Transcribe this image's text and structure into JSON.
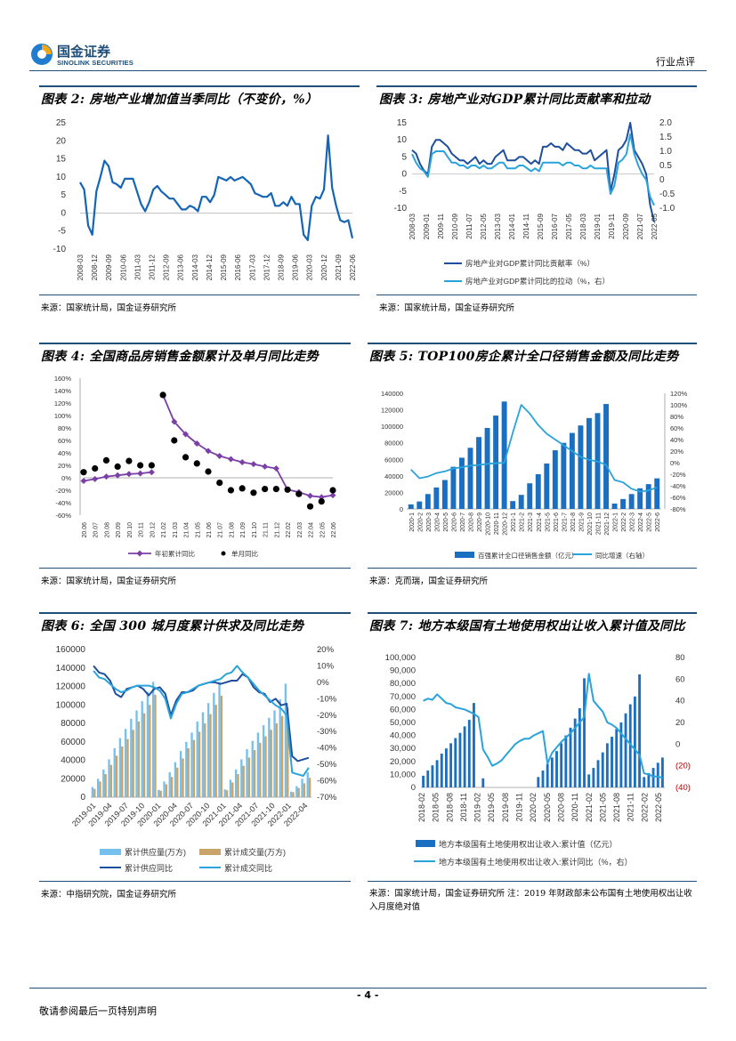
{
  "header": {
    "logo_cn": "国金证券",
    "logo_en": "SINOLINK SECURITIES",
    "category": "行业点评"
  },
  "fig2": {
    "title": "图表 2: 房地产业增加值当季同比（不变价，%）",
    "source": "来源：国家统计局，国金证券研究所",
    "chart_data": {
      "type": "line",
      "yticks": [
        "25",
        "20",
        "15",
        "10",
        "5",
        "0",
        "-5",
        "-10"
      ],
      "ylim": [
        -10,
        25
      ],
      "xlabels": [
        "2008-03",
        "2008-12",
        "2009-09",
        "2010-06",
        "2011-03",
        "2011-12",
        "2012-09",
        "2013-06",
        "2014-03",
        "2014-12",
        "2015-09",
        "2016-06",
        "2017-03",
        "2017-12",
        "2018-09",
        "2019-06",
        "2020-03",
        "2020-12",
        "2021-09",
        "2022-06"
      ],
      "series": [
        {
          "name": "房地产业增加值当季同比",
          "color": "#1565b6",
          "values": [
            8.5,
            6.5,
            -3.5,
            -6,
            6,
            10,
            14.5,
            13,
            8.5,
            8,
            7,
            9.5,
            9.5,
            9.5,
            6,
            2.5,
            0.5,
            3,
            6.5,
            7.5,
            6,
            5,
            4,
            4,
            2.5,
            1,
            1,
            2,
            1.5,
            0.5,
            4.5,
            4.5,
            3,
            5,
            10,
            9.5,
            9,
            10,
            9,
            9.5,
            10,
            9,
            8,
            5.5,
            5,
            4.5,
            4.5,
            5.5,
            2,
            2,
            3,
            2,
            4.5,
            2.5,
            2.5,
            -6,
            -7.5,
            2,
            4.5,
            4,
            6.5,
            21.5,
            7,
            2,
            -2,
            -2.5,
            -2,
            -7
          ]
        }
      ]
    }
  },
  "fig3": {
    "title": "图表 3: 房地产业对GDP累计同比贡献率和拉动",
    "source": "来源：国家统计局，国金证券研究所",
    "chart_data": {
      "type": "line",
      "yticks_left": [
        "15",
        "10",
        "5",
        "0",
        "-5",
        "-10"
      ],
      "yticks_right": [
        "2.0",
        "1.5",
        "1.0",
        "0.5",
        "0",
        "-0.5",
        "-1.0"
      ],
      "ylim_left": [
        -10,
        15
      ],
      "ylim_right": [
        -1.0,
        2.0
      ],
      "xlabels": [
        "2008-03",
        "2009-01",
        "2009-11",
        "2010-09",
        "2011-07",
        "2012-05",
        "2013-03",
        "2014-01",
        "2014-11",
        "2015-09",
        "2016-07",
        "2017-05",
        "2018-03",
        "2019-01",
        "2019-11",
        "2020-09",
        "2021-07",
        "2022-05"
      ],
      "legend": [
        "房地产业对GDP累计同比贡献率（%）",
        "房地产业对GDP累计同比的拉动（%，右）"
      ],
      "series": [
        {
          "name": "房地产业对GDP累计同比贡献率（%）",
          "axis": "left",
          "color": "#1f4e9e",
          "values": [
            7,
            6,
            3,
            1,
            0,
            8,
            10,
            10,
            9,
            8,
            6,
            5,
            4,
            4,
            3,
            4,
            5,
            3,
            4,
            3,
            3,
            5,
            6,
            7,
            4,
            4,
            4,
            5,
            5,
            4,
            3,
            4,
            3,
            8,
            8,
            9,
            8,
            8,
            7,
            9,
            8,
            7,
            7,
            6,
            6,
            7,
            4,
            5,
            6,
            7,
            -5,
            0,
            7,
            8,
            10,
            15,
            7,
            5,
            3,
            0,
            -9,
            -14
          ]
        },
        {
          "name": "房地产业对GDP累计同比的拉动（%，右）",
          "axis": "right",
          "color": "#29a3dc",
          "values": [
            0.9,
            0.6,
            0.4,
            0.3,
            0.1,
            0.9,
            1.0,
            1.0,
            1.0,
            0.8,
            0.6,
            0.6,
            0.5,
            0.5,
            0.4,
            0.5,
            0.5,
            0.4,
            0.5,
            0.4,
            0.4,
            0.5,
            0.6,
            0.6,
            0.4,
            0.4,
            0.4,
            0.5,
            0.5,
            0.4,
            0.3,
            0.4,
            0.3,
            0.6,
            0.6,
            0.6,
            0.6,
            0.6,
            0.5,
            0.6,
            0.6,
            0.5,
            0.5,
            0.4,
            0.4,
            0.5,
            0.4,
            0.4,
            0.4,
            0.4,
            -0.5,
            -0.2,
            0.6,
            0.7,
            0.9,
            1.6,
            0.9,
            0.5,
            0.2,
            0.0,
            -0.6,
            -0.9
          ]
        }
      ]
    }
  },
  "fig4": {
    "title": "图表 4: 全国商品房销售金额累计及单月同比走势",
    "source": "来源：国家统计局，国金证券研究所",
    "chart_data": {
      "type": "line",
      "yticks": [
        "160%",
        "140%",
        "120%",
        "100%",
        "80%",
        "60%",
        "40%",
        "20%",
        "0%",
        "-20%",
        "-40%",
        "-60%"
      ],
      "ylim": [
        -60,
        160
      ],
      "categories": [
        "20.06",
        "20.07",
        "20.08",
        "20.09",
        "20.10",
        "20.11",
        "20.12",
        "21.02",
        "21.03",
        "21.04",
        "21.05",
        "21.06",
        "21.07",
        "21.08",
        "21.09",
        "21.10",
        "21.11",
        "21.12",
        "22.02",
        "22.03",
        "22.04",
        "22.05",
        "22.06"
      ],
      "legend": [
        "年初累计同比",
        "单月同比"
      ],
      "series": [
        {
          "name": "年初累计同比",
          "color": "#7b3fa8",
          "values": [
            -5,
            -2,
            2,
            4,
            6,
            7,
            9,
            133,
            90,
            70,
            55,
            43,
            35,
            30,
            25,
            22,
            18,
            15,
            -19,
            -23,
            -29,
            -31,
            -28
          ]
        },
        {
          "name": "单月同比",
          "color": "#000000",
          "values": [
            9,
            15,
            28,
            18,
            27,
            20,
            20,
            133,
            60,
            33,
            23,
            10,
            -8,
            -20,
            -17,
            -24,
            -18,
            -18,
            -19,
            -26,
            -46,
            -38,
            -20
          ]
        }
      ]
    }
  },
  "fig5": {
    "title": "图表 5: TOP100房企累计全口径销售金额及同比走势",
    "source": "来源：克而瑞，国金证券研究所",
    "chart_data": {
      "type": "bar",
      "yticks_left": [
        "140000",
        "120000",
        "100000",
        "80000",
        "60000",
        "40000",
        "20000",
        "0"
      ],
      "yticks_right": [
        "120%",
        "100%",
        "80%",
        "60%",
        "40%",
        "20%",
        "0%",
        "-20%",
        "-40%",
        "-60%",
        "-80%"
      ],
      "ylim_left": [
        0,
        140000
      ],
      "ylim_right": [
        -80,
        120
      ],
      "categories": [
        "2020-1",
        "2020-2",
        "2020-3",
        "2020-4",
        "2020-5",
        "2020-6",
        "2020-7",
        "2020-8",
        "2020-9",
        "2020-10",
        "2020-11",
        "2020-12",
        "2021-1",
        "2021-2",
        "2021-3",
        "2021-4",
        "2021-5",
        "2021-6",
        "2021-7",
        "2021-8",
        "2021-9",
        "2021-10",
        "2021-11",
        "2021-12",
        "2022-1",
        "2022-2",
        "2022-3",
        "2022-4",
        "2022-5",
        "2022-6"
      ],
      "legend": [
        "百强累计全口径销售金额（亿元）",
        "同比增速（右轴）"
      ],
      "series": [
        {
          "name": "百强累计全口径销售金额（亿元）",
          "type": "bar",
          "color": "#1a6fc0",
          "values": [
            5500,
            9000,
            18000,
            26000,
            35000,
            51000,
            62000,
            74000,
            87000,
            98000,
            113000,
            130000,
            9500,
            17000,
            31000,
            42000,
            55000,
            71000,
            80000,
            92000,
            101000,
            110000,
            116000,
            127000,
            6500,
            12000,
            18000,
            25000,
            30000,
            37000
          ]
        },
        {
          "name": "同比增速（右轴）",
          "type": "line",
          "color": "#29a3dc",
          "values": [
            -12,
            -27,
            -24,
            -18,
            -15,
            -10,
            -8,
            -5,
            -4,
            -2,
            -1,
            0,
            52,
            100,
            85,
            65,
            50,
            40,
            30,
            20,
            10,
            5,
            2,
            -4,
            -30,
            -34,
            -45,
            -50,
            -48,
            -43
          ]
        }
      ]
    }
  },
  "fig6": {
    "title": "图表 6: 全国 300 城月度累计供求及同比走势",
    "source": "来源：中指研究院，国金证券研究所",
    "chart_data": {
      "type": "bar",
      "yticks_left": [
        "160000",
        "140000",
        "120000",
        "100000",
        "80000",
        "60000",
        "40000",
        "20000",
        "0"
      ],
      "yticks_right": [
        "20%",
        "10%",
        "0%",
        "-10%",
        "-20%",
        "-30%",
        "-40%",
        "-50%",
        "-60%",
        "-70%"
      ],
      "ylim_left": [
        0,
        160000
      ],
      "ylim_right": [
        -70,
        20
      ],
      "xlabels": [
        "2019-01",
        "2019-04",
        "2019-07",
        "2019-10",
        "2020-01",
        "2020-04",
        "2020-07",
        "2020-10",
        "2021-01",
        "2021-04",
        "2021-07",
        "2021-10",
        "2022-01",
        "2022-04"
      ],
      "legend": [
        "累计供应量(万方)",
        "累计成交量(万方)",
        "累计供应同比",
        "累计成交同比"
      ],
      "series": [
        {
          "name": "累计供应量(万方)",
          "type": "bar",
          "color": "#76c0ee",
          "values": [
            11000,
            20000,
            30000,
            41000,
            53000,
            64000,
            74000,
            85000,
            94000,
            104000,
            114000,
            125000,
            8000,
            17000,
            27000,
            38000,
            50000,
            60000,
            70000,
            82000,
            92000,
            102000,
            113000,
            125000,
            8500,
            19000,
            30000,
            41000,
            52000,
            61000,
            70000,
            78000,
            86000,
            94000,
            106000,
            123000,
            6000,
            12000,
            20000,
            27000
          ]
        },
        {
          "name": "累计成交量(万方)",
          "type": "bar",
          "color": "#c8a36a",
          "values": [
            9000,
            17000,
            25000,
            35000,
            45000,
            55000,
            63000,
            73000,
            82000,
            91000,
            100000,
            111000,
            7000,
            14000,
            22000,
            32000,
            42000,
            53000,
            62000,
            71000,
            80000,
            90000,
            100000,
            110000,
            7500,
            16000,
            25000,
            34000,
            43000,
            51000,
            59000,
            66000,
            73000,
            80000,
            88000,
            97000,
            5500,
            10000,
            15000,
            21000
          ]
        },
        {
          "name": "累计供应同比",
          "type": "line",
          "color": "#1f4e9e",
          "values": [
            10,
            6,
            5,
            1,
            -7,
            -9,
            -4,
            -3,
            -2,
            -4,
            -8,
            -4,
            -3,
            -7,
            -20,
            -11,
            -6,
            -6,
            -5,
            -2,
            -1,
            0,
            0,
            -1,
            0,
            1,
            1,
            5,
            3,
            -3,
            -6,
            -7,
            -12,
            -10,
            -14,
            -13,
            -45,
            -48,
            -47,
            -46
          ]
        },
        {
          "name": "累计成交同比",
          "type": "line",
          "color": "#29a3dc",
          "values": [
            7,
            3,
            2,
            -1,
            -4,
            -6,
            -5,
            -3,
            -2,
            -2,
            -2,
            -3,
            -5,
            -10,
            -22,
            -13,
            -7,
            -6,
            -4,
            -2,
            -1,
            0,
            1,
            2,
            5,
            6,
            10,
            6,
            3,
            -1,
            -5,
            -8,
            -11,
            -14,
            -16,
            -20,
            -55,
            -56,
            -57,
            -52
          ]
        }
      ]
    }
  },
  "fig7": {
    "title": "图表 7: 地方本级国有土地使用权出让收入累计值及同比",
    "source": "来源：国家统计局，国金证券研究所 注：2019 年财政部未公布国有土地使用权出让收入月度绝对值",
    "chart_data": {
      "type": "bar",
      "yticks_left": [
        "100,000",
        "90,000",
        "80,000",
        "70,000",
        "60,000",
        "50,000",
        "40,000",
        "30,000",
        "20,000",
        "10,000",
        "0"
      ],
      "yticks_right": [
        "80",
        "60",
        "40",
        "20",
        "0",
        "(20)",
        "(40)"
      ],
      "ylim_left": [
        0,
        100000
      ],
      "ylim_right": [
        -40,
        80
      ],
      "xlabels": [
        "2018-02",
        "2018-05",
        "2018-08",
        "2018-11",
        "2019-02",
        "2019-05",
        "2019-08",
        "2019-11",
        "2020-02",
        "2020-05",
        "2020-08",
        "2020-11",
        "2021-02",
        "2021-05",
        "2021-08",
        "2021-11",
        "2022-02",
        "2022-05"
      ],
      "legend": [
        "地方本级国有土地使用权出让收入:累计值（亿元）",
        "地方本级国有土地使用权出让收入:累计同比（%，右）"
      ],
      "series": [
        {
          "name": "累计值",
          "type": "bar",
          "color": "#1a6fc0",
          "values": [
            9000,
            13000,
            17000,
            21000,
            26000,
            30000,
            34000,
            38000,
            42000,
            47000,
            52000,
            65000,
            null,
            7000,
            null,
            null,
            null,
            null,
            null,
            null,
            null,
            null,
            null,
            null,
            null,
            8000,
            13000,
            18000,
            23000,
            28000,
            34000,
            40000,
            46000,
            53000,
            61000,
            84000,
            10000,
            15000,
            21000,
            27000,
            34000,
            39000,
            45000,
            50000,
            57000,
            64000,
            70000,
            87000,
            8000,
            11000,
            15000,
            19000,
            23000
          ]
        },
        {
          "name": "累计同比",
          "type": "line",
          "color": "#29a3dc",
          "values": [
            40,
            42,
            41,
            46,
            42,
            38,
            37,
            34,
            33,
            32,
            30,
            28,
            25,
            -5,
            -12,
            -20,
            -18,
            -15,
            -10,
            -5,
            0,
            3,
            5,
            5,
            8,
            10,
            12,
            -18,
            -8,
            -3,
            2,
            6,
            10,
            15,
            20,
            25,
            65,
            40,
            35,
            30,
            20,
            18,
            15,
            10,
            5,
            0,
            -5,
            -10,
            -27,
            -28,
            -30,
            -30,
            -31
          ]
        }
      ]
    }
  },
  "footer": {
    "page_number": "- 4 -",
    "disclaimer": "敬请参阅最后一页特别声明"
  }
}
